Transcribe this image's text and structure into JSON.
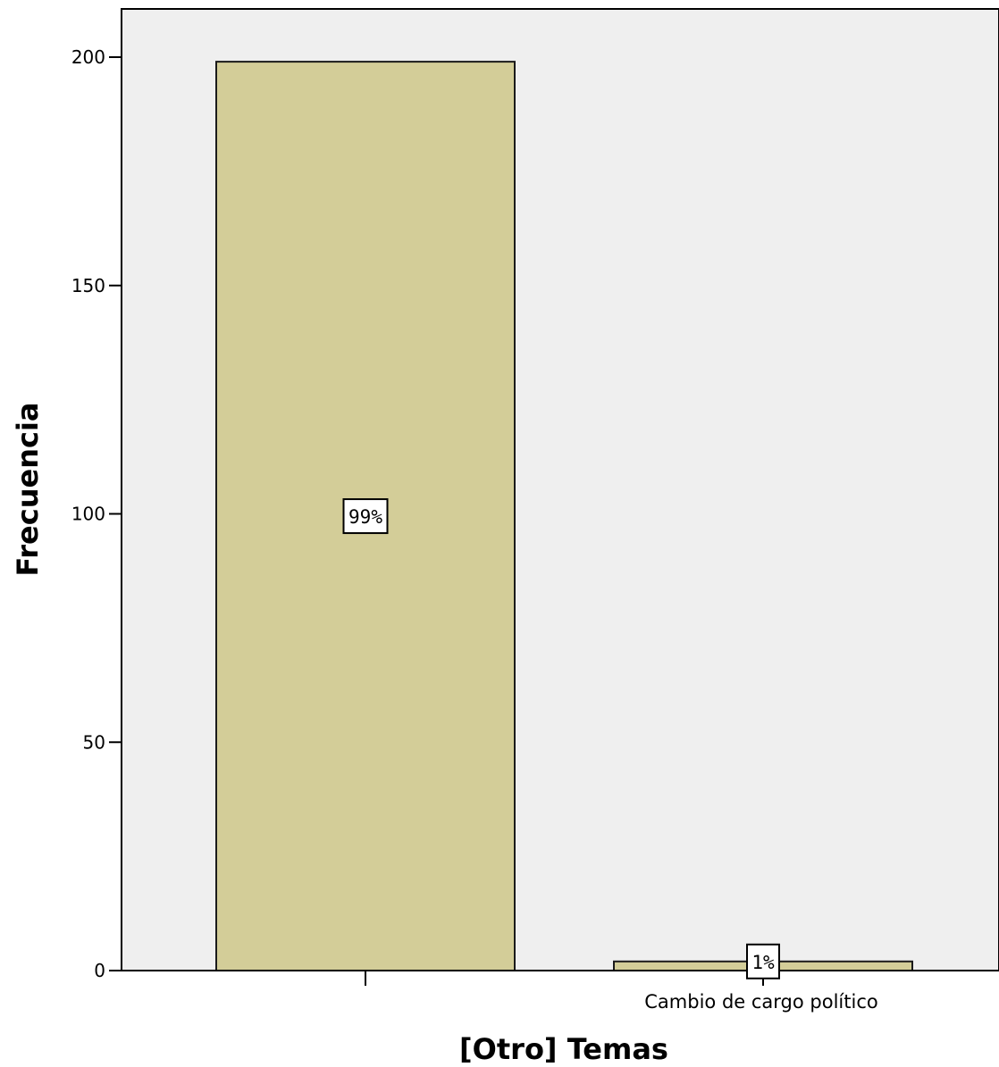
{
  "chart_data": {
    "type": "bar",
    "categories": [
      "",
      "Cambio de cargo político"
    ],
    "values": [
      199,
      2
    ],
    "data_labels": [
      "99%",
      "1%"
    ],
    "title": "",
    "xlabel": "[Otro] Temas",
    "ylabel": "Frecuencia",
    "ylim": [
      0,
      210
    ],
    "yticks": [
      "0",
      "50",
      "100",
      "150",
      "200"
    ],
    "grid": false,
    "legend": "none",
    "colors": {
      "bar_fill": "#d3cd98",
      "bar_stroke": "#1a1a1a",
      "plot_background": "#efefef",
      "frame": "#000000",
      "label_box_fill": "#ffffff"
    }
  }
}
